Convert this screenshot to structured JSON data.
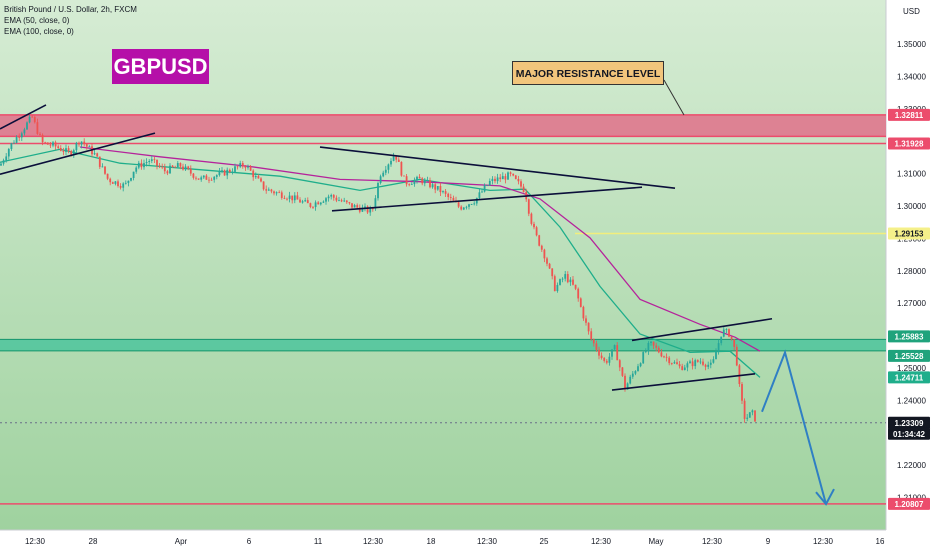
{
  "header": {
    "symbol_line": "British Pound / U.S. Dollar, 2h, FXCM",
    "ema1": "EMA (50, close, 0)",
    "ema2": "EMA (100, close, 0)"
  },
  "badge": {
    "text": "GBPUSD",
    "color": "#b50fa8"
  },
  "callout": {
    "text": "MAJOR RESISTANCE LEVEL"
  },
  "colors": {
    "background_top": "#d0e9cf",
    "background_bottom": "#9fd49f",
    "up_candle": "#26a69a",
    "down_candle": "#ef5350",
    "ema50": "#1fae8b",
    "ema100": "#b5239b",
    "resistance_zone": "#e0708a",
    "support_zone": "#4cc49c",
    "trendline": "#0b0f3a",
    "projection": "#2f7fc4"
  },
  "chart_data": {
    "type": "candlestick",
    "symbol": "British Pound / U.S. Dollar",
    "timeframe": "2h",
    "source": "FXCM",
    "currency": "USD",
    "x_ticks": [
      "12:30",
      "28",
      "Apr",
      "6",
      "11",
      "12:30",
      "18",
      "12:30",
      "25",
      "12:30",
      "May",
      "12:30",
      "9",
      "12:30",
      "16"
    ],
    "y_ticks": [
      "1.20000",
      "1.21000",
      "1.22000",
      "1.23000",
      "1.24000",
      "1.25000",
      "1.26000",
      "1.27000",
      "1.28000",
      "1.29000",
      "1.30000",
      "1.31000",
      "1.32000",
      "1.33000",
      "1.34000",
      "1.35000"
    ],
    "ylim": [
      1.195,
      1.362
    ],
    "price_close_path": [
      {
        "x": 0,
        "y": 1.3125
      },
      {
        "x": 10,
        "y": 1.3185
      },
      {
        "x": 20,
        "y": 1.3225
      },
      {
        "x": 32,
        "y": 1.3275
      },
      {
        "x": 42,
        "y": 1.3195
      },
      {
        "x": 55,
        "y": 1.3185
      },
      {
        "x": 70,
        "y": 1.3162
      },
      {
        "x": 80,
        "y": 1.3205
      },
      {
        "x": 95,
        "y": 1.3158
      },
      {
        "x": 108,
        "y": 1.3082
      },
      {
        "x": 125,
        "y": 1.3062
      },
      {
        "x": 135,
        "y": 1.3118
      },
      {
        "x": 150,
        "y": 1.3142
      },
      {
        "x": 165,
        "y": 1.3108
      },
      {
        "x": 180,
        "y": 1.3125
      },
      {
        "x": 200,
        "y": 1.3082
      },
      {
        "x": 220,
        "y": 1.3098
      },
      {
        "x": 245,
        "y": 1.3128
      },
      {
        "x": 265,
        "y": 1.3052
      },
      {
        "x": 290,
        "y": 1.3028
      },
      {
        "x": 310,
        "y": 1.3002
      },
      {
        "x": 330,
        "y": 1.3032
      },
      {
        "x": 350,
        "y": 1.3002
      },
      {
        "x": 372,
        "y": 1.2982
      },
      {
        "x": 380,
        "y": 1.3098
      },
      {
        "x": 395,
        "y": 1.3162
      },
      {
        "x": 405,
        "y": 1.3072
      },
      {
        "x": 420,
        "y": 1.3082
      },
      {
        "x": 440,
        "y": 1.3048
      },
      {
        "x": 460,
        "y": 1.2995
      },
      {
        "x": 475,
        "y": 1.3018
      },
      {
        "x": 490,
        "y": 1.3075
      },
      {
        "x": 510,
        "y": 1.3095
      },
      {
        "x": 525,
        "y": 1.3048
      },
      {
        "x": 530,
        "y": 1.2968
      },
      {
        "x": 535,
        "y": 1.2915
      },
      {
        "x": 545,
        "y": 1.2845
      },
      {
        "x": 555,
        "y": 1.2745
      },
      {
        "x": 565,
        "y": 1.2785
      },
      {
        "x": 575,
        "y": 1.2745
      },
      {
        "x": 590,
        "y": 1.2595
      },
      {
        "x": 605,
        "y": 1.2515
      },
      {
        "x": 615,
        "y": 1.2562
      },
      {
        "x": 625,
        "y": 1.2438
      },
      {
        "x": 640,
        "y": 1.2522
      },
      {
        "x": 650,
        "y": 1.2575
      },
      {
        "x": 665,
        "y": 1.2535
      },
      {
        "x": 680,
        "y": 1.2502
      },
      {
        "x": 700,
        "y": 1.2522
      },
      {
        "x": 712,
        "y": 1.2505
      },
      {
        "x": 722,
        "y": 1.2615
      },
      {
        "x": 730,
        "y": 1.2605
      },
      {
        "x": 736,
        "y": 1.2542
      },
      {
        "x": 740,
        "y": 1.2422
      },
      {
        "x": 745,
        "y": 1.2342
      },
      {
        "x": 752,
        "y": 1.2362
      },
      {
        "x": 757,
        "y": 1.2332
      }
    ],
    "ema50_path": [
      {
        "x": 0,
        "y": 1.3135
      },
      {
        "x": 60,
        "y": 1.3175
      },
      {
        "x": 120,
        "y": 1.3132
      },
      {
        "x": 200,
        "y": 1.3112
      },
      {
        "x": 280,
        "y": 1.3092
      },
      {
        "x": 360,
        "y": 1.3048
      },
      {
        "x": 420,
        "y": 1.3082
      },
      {
        "x": 490,
        "y": 1.3048
      },
      {
        "x": 525,
        "y": 1.3052
      },
      {
        "x": 560,
        "y": 1.2935
      },
      {
        "x": 600,
        "y": 1.2752
      },
      {
        "x": 640,
        "y": 1.2605
      },
      {
        "x": 690,
        "y": 1.2548
      },
      {
        "x": 730,
        "y": 1.2552
      },
      {
        "x": 760,
        "y": 1.2471
      }
    ],
    "ema100_path": [
      {
        "x": 80,
        "y": 1.3182
      },
      {
        "x": 160,
        "y": 1.3152
      },
      {
        "x": 250,
        "y": 1.3122
      },
      {
        "x": 340,
        "y": 1.3082
      },
      {
        "x": 420,
        "y": 1.3075
      },
      {
        "x": 500,
        "y": 1.3062
      },
      {
        "x": 540,
        "y": 1.3022
      },
      {
        "x": 590,
        "y": 1.2902
      },
      {
        "x": 640,
        "y": 1.2712
      },
      {
        "x": 700,
        "y": 1.2635
      },
      {
        "x": 735,
        "y": 1.2595
      },
      {
        "x": 760,
        "y": 1.2552
      }
    ],
    "levels": [
      {
        "label": "1.32811",
        "value": 1.32811,
        "kind": "resistance_zone_top",
        "color": "#ec4c6c"
      },
      {
        "label": "1.31928",
        "value": 1.31928,
        "kind": "line",
        "color": "#ec4c6c"
      },
      {
        "label": "1.29153",
        "value": 1.29153,
        "kind": "line",
        "color": "#f2ee7c"
      },
      {
        "label": "1.25883",
        "value": 1.25883,
        "kind": "support_zone_top",
        "color": "#1fa37c"
      },
      {
        "label": "1.25528",
        "value": 1.25528,
        "kind": "support_zone_bottom",
        "color": "#1fa37c"
      },
      {
        "label": "1.24711",
        "value": 1.24711,
        "kind": "ema50",
        "color": "#1fae8b"
      },
      {
        "label": "1.23309",
        "value": 1.23309,
        "kind": "current",
        "color": "#131722"
      },
      {
        "label": "01:34:42",
        "value": 1.23309,
        "kind": "countdown",
        "color": "#131722"
      },
      {
        "label": "1.20807",
        "value": 1.20807,
        "kind": "line",
        "color": "#ec4c6c"
      }
    ],
    "zones": [
      {
        "name": "resistance",
        "top": 1.32811,
        "bottom": 1.3215
      },
      {
        "name": "support",
        "top": 1.25883,
        "bottom": 1.25528
      }
    ],
    "trendlines": [
      {
        "from": {
          "x": 0,
          "y": 1.3238
        },
        "to": {
          "x": 46,
          "y": 1.3312
        }
      },
      {
        "from": {
          "x": 0,
          "y": 1.3098
        },
        "to": {
          "x": 155,
          "y": 1.3225
        }
      },
      {
        "from": {
          "x": 320,
          "y": 1.3182
        },
        "to": {
          "x": 675,
          "y": 1.3055
        }
      },
      {
        "from": {
          "x": 332,
          "y": 1.2985
        },
        "to": {
          "x": 642,
          "y": 1.3058
        }
      },
      {
        "from": {
          "x": 632,
          "y": 1.2585
        },
        "to": {
          "x": 772,
          "y": 1.2652
        }
      },
      {
        "from": {
          "x": 612,
          "y": 1.2432
        },
        "to": {
          "x": 755,
          "y": 1.2482
        }
      }
    ],
    "projection": [
      {
        "x": 762,
        "y": 1.2365
      },
      {
        "x": 785,
        "y": 1.2548
      },
      {
        "x": 826,
        "y": 1.208
      }
    ]
  }
}
